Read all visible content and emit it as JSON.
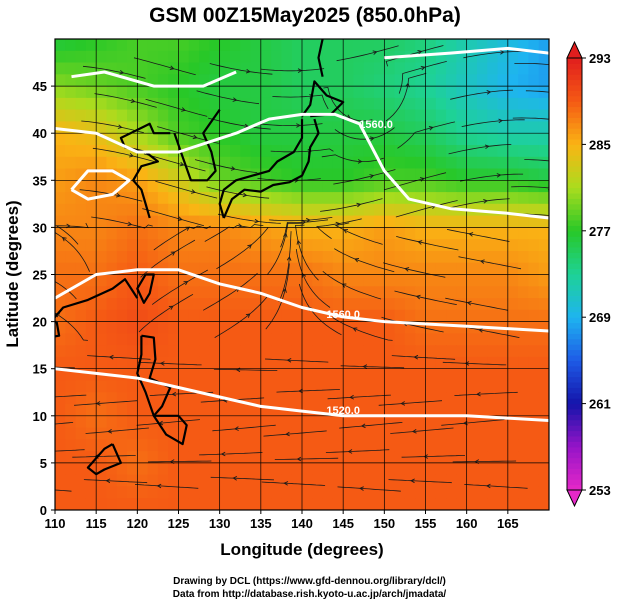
{
  "chart_data": {
    "type": "heatmap",
    "title": "GSM 00Z15May2025 (850.0hPa)",
    "xlabel": "Longitude (degrees)",
    "ylabel": "Latitude (degrees)",
    "xlim": [
      110,
      170
    ],
    "ylim": [
      0,
      50
    ],
    "x_ticks": [
      "110",
      "115",
      "120",
      "125",
      "130",
      "135",
      "140",
      "145",
      "150",
      "155",
      "160",
      "165"
    ],
    "y_ticks": [
      "0",
      "5",
      "10",
      "15",
      "20",
      "25",
      "30",
      "35",
      "40",
      "45"
    ],
    "colorbar": {
      "min": 253,
      "max": 293,
      "tick_labels": [
        "293",
        "285",
        "277",
        "269",
        "261",
        "253"
      ]
    },
    "field_grid": {
      "description": "Temperature (K) at grid nodes, rows from lat 50 down to 0, columns lon 110..170 every 5",
      "lats": [
        50,
        45,
        40,
        35,
        30,
        25,
        20,
        15,
        10,
        5,
        0
      ],
      "lons": [
        110,
        115,
        120,
        125,
        130,
        135,
        140,
        145,
        150,
        155,
        160,
        165,
        170
      ],
      "values": [
        [
          276,
          277,
          278,
          278,
          277,
          276,
          275,
          275,
          275,
          274,
          272,
          270,
          268
        ],
        [
          280,
          279,
          278,
          277,
          276,
          276,
          275,
          275,
          274,
          273,
          271,
          269,
          268
        ],
        [
          285,
          284,
          281,
          278,
          277,
          276,
          276,
          276,
          276,
          275,
          273,
          272,
          272
        ],
        [
          286,
          287,
          286,
          283,
          279,
          278,
          277,
          277,
          278,
          278,
          277,
          277,
          276
        ],
        [
          287,
          287,
          288,
          287,
          287,
          286,
          285,
          285,
          286,
          285,
          285,
          285,
          285
        ],
        [
          288,
          288,
          289,
          288,
          288,
          288,
          288,
          287,
          287,
          287,
          287,
          287,
          286
        ],
        [
          288,
          289,
          290,
          289,
          289,
          289,
          289,
          289,
          289,
          288,
          288,
          288,
          288
        ],
        [
          289,
          289,
          289,
          289,
          289,
          289,
          289,
          289,
          289,
          289,
          289,
          289,
          289
        ],
        [
          289,
          288,
          289,
          289,
          289,
          289,
          289,
          289,
          289,
          289,
          289,
          289,
          289
        ],
        [
          289,
          289,
          288,
          289,
          289,
          289,
          289,
          289,
          289,
          289,
          289,
          289,
          289
        ],
        [
          289,
          289,
          289,
          289,
          289,
          289,
          289,
          289,
          289,
          289,
          289,
          289,
          289
        ]
      ]
    },
    "contour_labels": [
      "1560.0",
      "1560.0",
      "1520.0"
    ],
    "contour_lines": [
      {
        "label": "1560.0",
        "points": [
          [
            110,
            40.5
          ],
          [
            115,
            40
          ],
          [
            120,
            38
          ],
          [
            125,
            38
          ],
          [
            132,
            40
          ],
          [
            136,
            41.5
          ],
          [
            140,
            42
          ],
          [
            144,
            42
          ],
          [
            147,
            41
          ],
          [
            150,
            36
          ],
          [
            153,
            33
          ],
          [
            158,
            32
          ],
          [
            165,
            31.5
          ],
          [
            170,
            31
          ]
        ]
      },
      {
        "label": "1560.0",
        "points": [
          [
            110,
            22.5
          ],
          [
            115,
            25
          ],
          [
            120,
            25.5
          ],
          [
            125,
            25.5
          ],
          [
            130,
            24
          ],
          [
            135,
            23
          ],
          [
            140,
            21.5
          ],
          [
            145,
            20.5
          ],
          [
            150,
            20
          ],
          [
            160,
            19.5
          ],
          [
            170,
            19
          ]
        ]
      },
      {
        "label": "1520.0",
        "points": [
          [
            110,
            15
          ],
          [
            115,
            14.5
          ],
          [
            120,
            14
          ],
          [
            125,
            13
          ],
          [
            130,
            12
          ],
          [
            135,
            11
          ],
          [
            140,
            10.5
          ],
          [
            145,
            10
          ],
          [
            150,
            10
          ],
          [
            160,
            10
          ],
          [
            170,
            9.5
          ]
        ]
      },
      {
        "label": "",
        "points": [
          [
            112,
            34
          ],
          [
            114,
            36
          ],
          [
            117,
            36
          ],
          [
            119,
            35
          ],
          [
            117,
            33.5
          ],
          [
            114,
            33
          ],
          [
            112,
            34
          ]
        ]
      },
      {
        "label": "",
        "points": [
          [
            112,
            46
          ],
          [
            116,
            46.5
          ],
          [
            122,
            45
          ],
          [
            128,
            45
          ],
          [
            132,
            46.5
          ]
        ]
      },
      {
        "label": "",
        "points": [
          [
            150,
            48
          ],
          [
            158,
            48.5
          ],
          [
            165,
            49
          ],
          [
            170,
            48.5
          ]
        ]
      }
    ],
    "streamlines": "wind streamlines with arrowheads over whole domain",
    "coastlines": true,
    "grid": true
  },
  "footer": {
    "line1": "Drawing by DCL (https://www.gfd-dennou.org/library/dcl/)",
    "line2": "Data from http://database.rish.kyoto-u.ac.jp/arch/jmadata/"
  }
}
